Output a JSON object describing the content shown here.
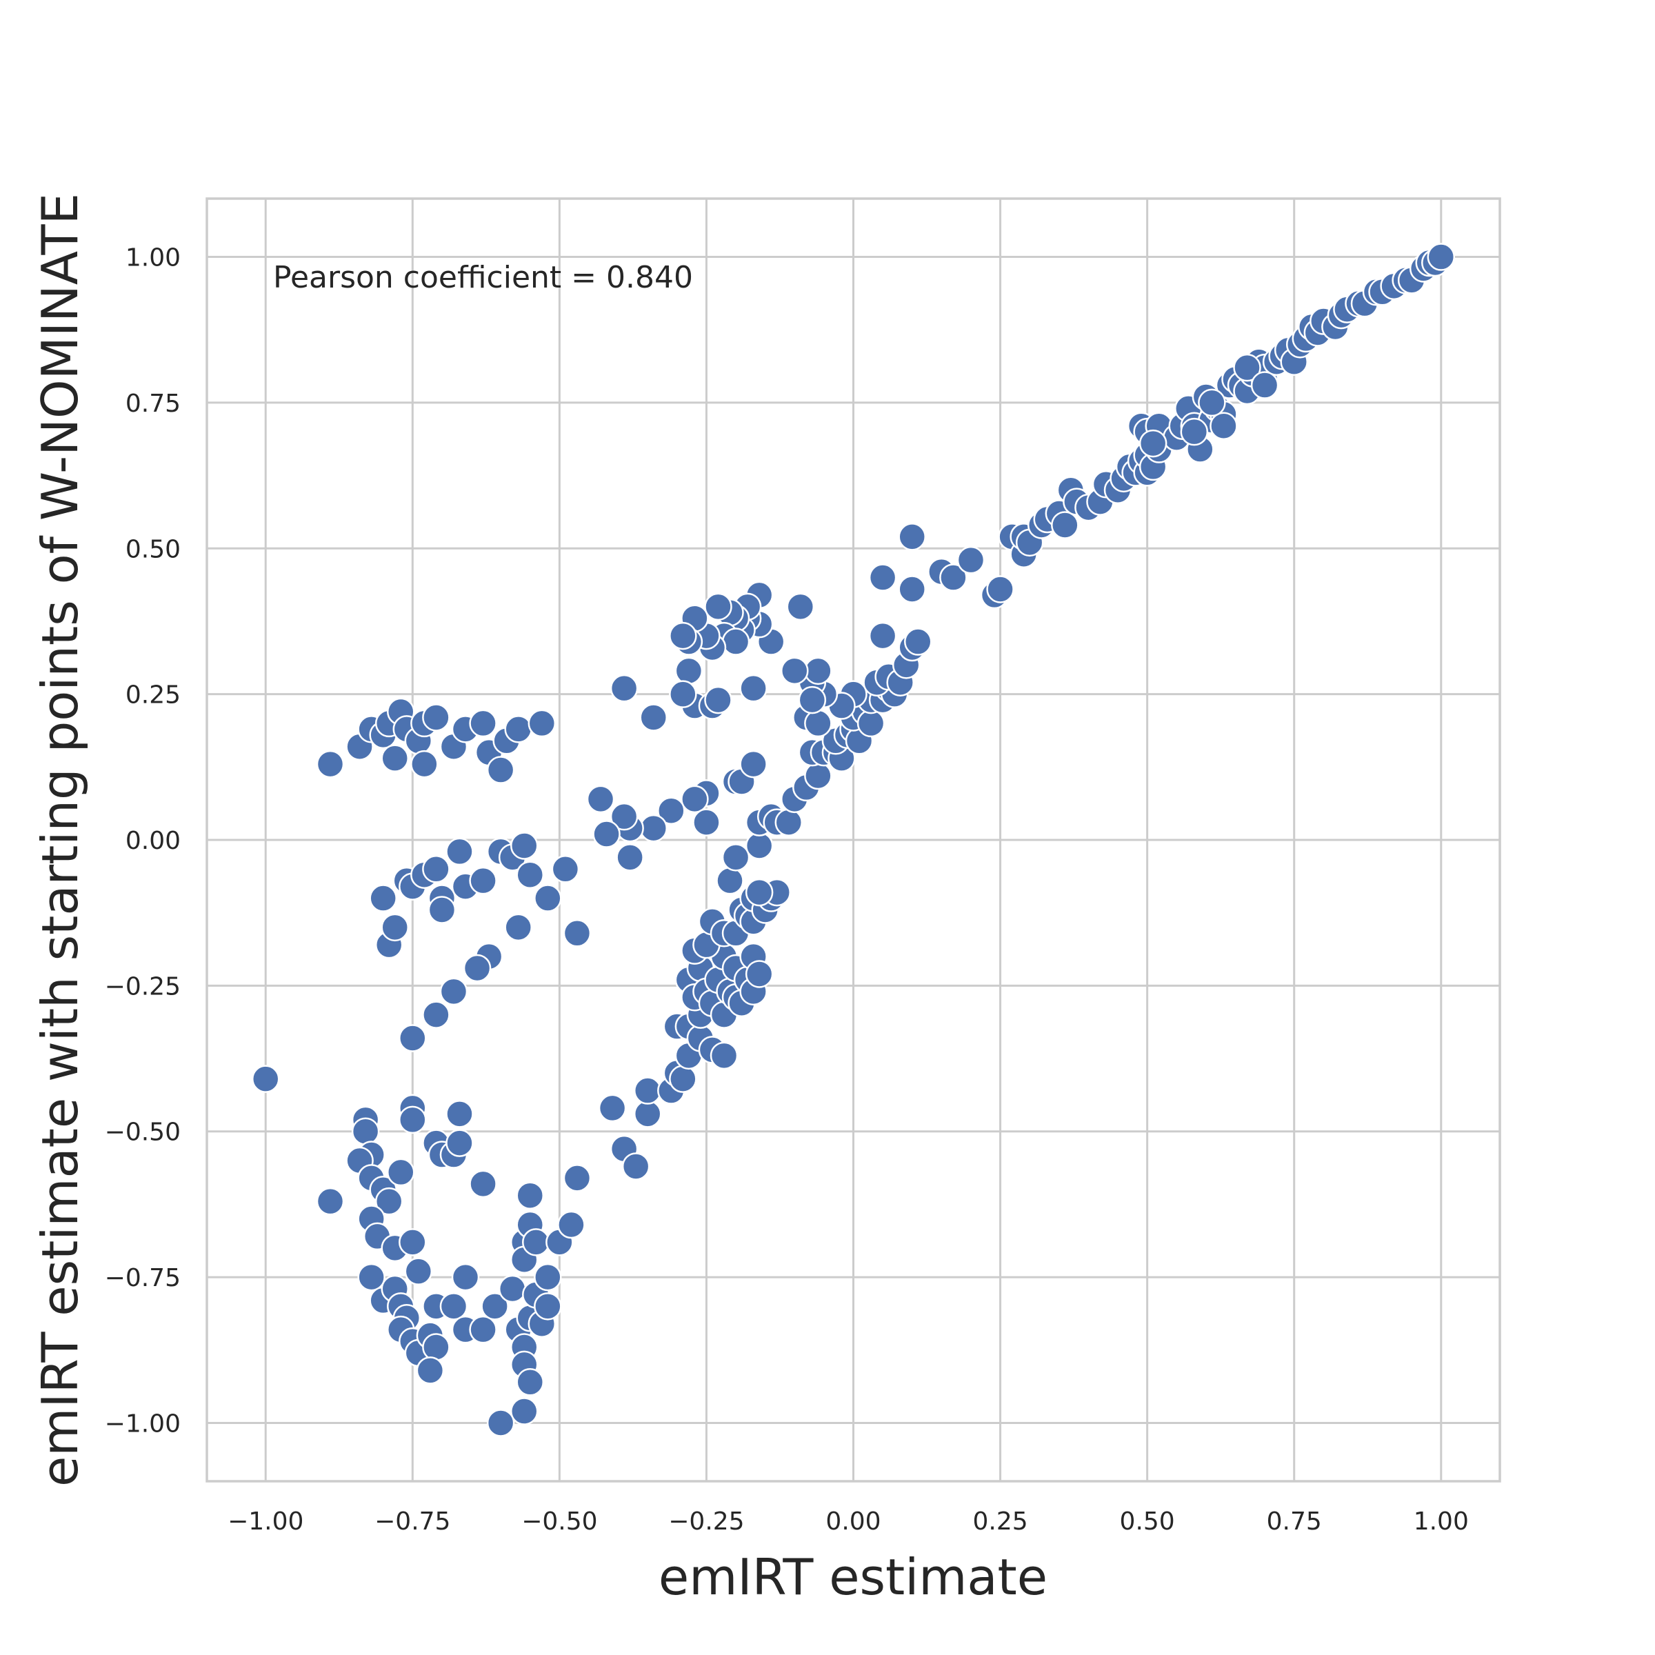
{
  "chart_data": {
    "type": "scatter",
    "xlabel": "emIRT estimate",
    "ylabel": "emIRT estimate with starting points of W-NOMINATE",
    "xlim": [
      -1.1,
      1.1
    ],
    "ylim": [
      -1.1,
      1.1
    ],
    "x_ticks": [
      -1.0,
      -0.75,
      -0.5,
      -0.25,
      0.0,
      0.25,
      0.5,
      0.75,
      1.0
    ],
    "y_ticks": [
      -1.0,
      -0.75,
      -0.5,
      -0.25,
      0.0,
      0.25,
      0.5,
      0.75,
      1.0
    ],
    "x_tick_labels": [
      "−1.00",
      "−0.75",
      "−0.50",
      "−0.25",
      "0.00",
      "0.25",
      "0.50",
      "0.75",
      "1.00"
    ],
    "y_tick_labels": [
      "−1.00",
      "−0.75",
      "−0.50",
      "−0.25",
      "0.00",
      "0.25",
      "0.50",
      "0.75",
      "1.00"
    ],
    "grid": true,
    "marker_color": "#4c72b0",
    "annotation": "Pearson coefficient = 0.840",
    "points": [
      [
        -1.0,
        -0.41
      ],
      [
        -0.89,
        0.13
      ],
      [
        -0.84,
        0.16
      ],
      [
        -0.82,
        0.19
      ],
      [
        -0.8,
        0.18
      ],
      [
        -0.79,
        0.2
      ],
      [
        -0.78,
        0.14
      ],
      [
        -0.77,
        0.22
      ],
      [
        -0.76,
        0.19
      ],
      [
        -0.74,
        0.17
      ],
      [
        -0.73,
        0.2
      ],
      [
        -0.73,
        0.13
      ],
      [
        -0.71,
        0.21
      ],
      [
        -0.68,
        0.16
      ],
      [
        -0.66,
        0.19
      ],
      [
        -0.63,
        0.2
      ],
      [
        -0.62,
        0.15
      ],
      [
        -0.6,
        0.12
      ],
      [
        -0.59,
        0.17
      ],
      [
        -0.57,
        0.19
      ],
      [
        -0.53,
        0.2
      ],
      [
        -0.8,
        -0.1
      ],
      [
        -0.79,
        -0.18
      ],
      [
        -0.78,
        -0.15
      ],
      [
        -0.76,
        -0.07
      ],
      [
        -0.75,
        -0.08
      ],
      [
        -0.73,
        -0.06
      ],
      [
        -0.71,
        -0.05
      ],
      [
        -0.7,
        -0.1
      ],
      [
        -0.7,
        -0.12
      ],
      [
        -0.67,
        -0.02
      ],
      [
        -0.66,
        -0.08
      ],
      [
        -0.63,
        -0.07
      ],
      [
        -0.6,
        -0.02
      ],
      [
        -0.58,
        -0.03
      ],
      [
        -0.56,
        -0.01
      ],
      [
        -0.55,
        -0.06
      ],
      [
        -0.52,
        -0.1
      ],
      [
        -0.49,
        -0.05
      ],
      [
        -0.47,
        -0.16
      ],
      [
        -0.57,
        -0.15
      ],
      [
        -0.62,
        -0.2
      ],
      [
        -0.64,
        -0.22
      ],
      [
        -0.68,
        -0.26
      ],
      [
        -0.71,
        -0.3
      ],
      [
        -0.75,
        -0.34
      ],
      [
        -0.83,
        -0.48
      ],
      [
        -0.83,
        -0.5
      ],
      [
        -0.82,
        -0.54
      ],
      [
        -0.84,
        -0.55
      ],
      [
        -0.82,
        -0.58
      ],
      [
        -0.89,
        -0.62
      ],
      [
        -0.8,
        -0.6
      ],
      [
        -0.79,
        -0.62
      ],
      [
        -0.82,
        -0.65
      ],
      [
        -0.81,
        -0.68
      ],
      [
        -0.77,
        -0.57
      ],
      [
        -0.75,
        -0.46
      ],
      [
        -0.75,
        -0.48
      ],
      [
        -0.71,
        -0.52
      ],
      [
        -0.7,
        -0.54
      ],
      [
        -0.68,
        -0.54
      ],
      [
        -0.67,
        -0.52
      ],
      [
        -0.67,
        -0.47
      ],
      [
        -0.78,
        -0.7
      ],
      [
        -0.75,
        -0.69
      ],
      [
        -0.74,
        -0.74
      ],
      [
        -0.82,
        -0.75
      ],
      [
        -0.8,
        -0.79
      ],
      [
        -0.78,
        -0.77
      ],
      [
        -0.77,
        -0.8
      ],
      [
        -0.76,
        -0.82
      ],
      [
        -0.77,
        -0.84
      ],
      [
        -0.75,
        -0.86
      ],
      [
        -0.74,
        -0.88
      ],
      [
        -0.72,
        -0.85
      ],
      [
        -0.71,
        -0.87
      ],
      [
        -0.72,
        -0.91
      ],
      [
        -0.71,
        -0.8
      ],
      [
        -0.68,
        -0.8
      ],
      [
        -0.66,
        -0.75
      ],
      [
        -0.66,
        -0.84
      ],
      [
        -0.63,
        -0.84
      ],
      [
        -0.63,
        -0.59
      ],
      [
        -0.61,
        -0.8
      ],
      [
        -0.58,
        -0.77
      ],
      [
        -0.57,
        -0.84
      ],
      [
        -0.56,
        -0.87
      ],
      [
        -0.56,
        -0.9
      ],
      [
        -0.55,
        -0.93
      ],
      [
        -0.56,
        -0.98
      ],
      [
        -0.6,
        -1.0
      ],
      [
        -0.55,
        -0.82
      ],
      [
        -0.54,
        -0.78
      ],
      [
        -0.53,
        -0.83
      ],
      [
        -0.52,
        -0.8
      ],
      [
        -0.52,
        -0.75
      ],
      [
        -0.56,
        -0.69
      ],
      [
        -0.55,
        -0.66
      ],
      [
        -0.55,
        -0.61
      ],
      [
        -0.56,
        -0.72
      ],
      [
        -0.54,
        -0.69
      ],
      [
        -0.5,
        -0.69
      ],
      [
        -0.48,
        -0.66
      ],
      [
        -0.47,
        -0.58
      ],
      [
        -0.41,
        -0.46
      ],
      [
        -0.39,
        -0.53
      ],
      [
        -0.37,
        -0.56
      ],
      [
        -0.35,
        -0.47
      ],
      [
        -0.35,
        -0.43
      ],
      [
        -0.31,
        -0.43
      ],
      [
        -0.3,
        -0.4
      ],
      [
        -0.29,
        -0.41
      ],
      [
        -0.28,
        -0.37
      ],
      [
        -0.3,
        -0.32
      ],
      [
        -0.28,
        -0.32
      ],
      [
        -0.26,
        -0.34
      ],
      [
        -0.26,
        -0.3
      ],
      [
        -0.24,
        -0.36
      ],
      [
        -0.22,
        -0.37
      ],
      [
        -0.28,
        -0.24
      ],
      [
        -0.27,
        -0.27
      ],
      [
        -0.26,
        -0.22
      ],
      [
        -0.25,
        -0.26
      ],
      [
        -0.24,
        -0.28
      ],
      [
        -0.23,
        -0.24
      ],
      [
        -0.22,
        -0.3
      ],
      [
        -0.22,
        -0.2
      ],
      [
        -0.21,
        -0.26
      ],
      [
        -0.2,
        -0.27
      ],
      [
        -0.2,
        -0.22
      ],
      [
        -0.19,
        -0.28
      ],
      [
        -0.18,
        -0.24
      ],
      [
        -0.17,
        -0.26
      ],
      [
        -0.17,
        -0.2
      ],
      [
        -0.16,
        -0.23
      ],
      [
        -0.27,
        -0.19
      ],
      [
        -0.25,
        -0.18
      ],
      [
        -0.24,
        -0.14
      ],
      [
        -0.22,
        -0.16
      ],
      [
        -0.2,
        -0.16
      ],
      [
        -0.19,
        -0.12
      ],
      [
        -0.18,
        -0.13
      ],
      [
        -0.17,
        -0.14
      ],
      [
        -0.17,
        -0.1
      ],
      [
        -0.15,
        -0.12
      ],
      [
        -0.14,
        -0.1
      ],
      [
        -0.13,
        -0.09
      ],
      [
        -0.16,
        -0.09
      ],
      [
        -0.21,
        -0.07
      ],
      [
        -0.2,
        -0.03
      ],
      [
        -0.16,
        -0.01
      ],
      [
        -0.16,
        0.03
      ],
      [
        -0.14,
        0.04
      ],
      [
        -0.13,
        0.03
      ],
      [
        -0.11,
        0.03
      ],
      [
        -0.1,
        0.07
      ],
      [
        -0.08,
        0.09
      ],
      [
        -0.06,
        0.11
      ],
      [
        -0.07,
        0.15
      ],
      [
        -0.05,
        0.15
      ],
      [
        -0.03,
        0.15
      ],
      [
        -0.02,
        0.14
      ],
      [
        -0.03,
        0.17
      ],
      [
        -0.01,
        0.18
      ],
      [
        0.0,
        0.19
      ],
      [
        0.01,
        0.17
      ],
      [
        0.0,
        0.21
      ],
      [
        0.02,
        0.22
      ],
      [
        0.03,
        0.2
      ],
      [
        0.03,
        0.24
      ],
      [
        0.05,
        0.24
      ],
      [
        0.06,
        0.26
      ],
      [
        0.07,
        0.25
      ],
      [
        0.04,
        0.27
      ],
      [
        0.06,
        0.28
      ],
      [
        0.08,
        0.27
      ],
      [
        0.09,
        0.3
      ],
      [
        0.1,
        0.33
      ],
      [
        0.11,
        0.34
      ],
      [
        0.05,
        0.35
      ],
      [
        0.0,
        0.25
      ],
      [
        -0.02,
        0.23
      ],
      [
        -0.05,
        0.25
      ],
      [
        -0.07,
        0.27
      ],
      [
        -0.06,
        0.29
      ],
      [
        -0.1,
        0.29
      ],
      [
        -0.08,
        0.21
      ],
      [
        -0.06,
        0.2
      ],
      [
        -0.07,
        0.24
      ],
      [
        -0.09,
        0.4
      ],
      [
        -0.14,
        0.34
      ],
      [
        -0.16,
        0.37
      ],
      [
        -0.16,
        0.42
      ],
      [
        -0.18,
        0.38
      ],
      [
        -0.18,
        0.4
      ],
      [
        -0.19,
        0.36
      ],
      [
        -0.2,
        0.38
      ],
      [
        -0.21,
        0.39
      ],
      [
        -0.22,
        0.35
      ],
      [
        -0.2,
        0.34
      ],
      [
        -0.23,
        0.4
      ],
      [
        -0.24,
        0.33
      ],
      [
        -0.25,
        0.35
      ],
      [
        -0.27,
        0.38
      ],
      [
        -0.28,
        0.34
      ],
      [
        -0.29,
        0.35
      ],
      [
        -0.28,
        0.29
      ],
      [
        -0.27,
        0.23
      ],
      [
        -0.24,
        0.23
      ],
      [
        -0.23,
        0.24
      ],
      [
        -0.29,
        0.25
      ],
      [
        -0.17,
        0.26
      ],
      [
        -0.34,
        0.21
      ],
      [
        -0.39,
        0.26
      ],
      [
        -0.2,
        0.1
      ],
      [
        -0.19,
        0.1
      ],
      [
        -0.17,
        0.13
      ],
      [
        -0.25,
        0.08
      ],
      [
        -0.27,
        0.07
      ],
      [
        -0.25,
        0.03
      ],
      [
        -0.31,
        0.05
      ],
      [
        -0.34,
        0.02
      ],
      [
        -0.38,
        0.02
      ],
      [
        -0.39,
        0.04
      ],
      [
        -0.42,
        0.01
      ],
      [
        -0.38,
        -0.03
      ],
      [
        -0.43,
        0.07
      ],
      [
        0.15,
        0.46
      ],
      [
        0.17,
        0.45
      ],
      [
        0.2,
        0.48
      ],
      [
        0.1,
        0.52
      ],
      [
        0.05,
        0.45
      ],
      [
        0.1,
        0.43
      ],
      [
        0.24,
        0.42
      ],
      [
        0.25,
        0.43
      ],
      [
        0.27,
        0.52
      ],
      [
        0.29,
        0.49
      ],
      [
        0.29,
        0.52
      ],
      [
        0.3,
        0.51
      ],
      [
        0.32,
        0.54
      ],
      [
        0.33,
        0.55
      ],
      [
        0.35,
        0.56
      ],
      [
        0.36,
        0.54
      ],
      [
        0.37,
        0.6
      ],
      [
        0.38,
        0.58
      ],
      [
        0.4,
        0.57
      ],
      [
        0.42,
        0.58
      ],
      [
        0.43,
        0.61
      ],
      [
        0.45,
        0.6
      ],
      [
        0.46,
        0.62
      ],
      [
        0.47,
        0.64
      ],
      [
        0.48,
        0.63
      ],
      [
        0.49,
        0.65
      ],
      [
        0.5,
        0.63
      ],
      [
        0.5,
        0.66
      ],
      [
        0.51,
        0.64
      ],
      [
        0.52,
        0.67
      ],
      [
        0.49,
        0.71
      ],
      [
        0.5,
        0.7
      ],
      [
        0.52,
        0.71
      ],
      [
        0.55,
        0.69
      ],
      [
        0.56,
        0.71
      ],
      [
        0.57,
        0.74
      ],
      [
        0.58,
        0.71
      ],
      [
        0.59,
        0.67
      ],
      [
        0.6,
        0.76
      ],
      [
        0.61,
        0.72
      ],
      [
        0.62,
        0.74
      ],
      [
        0.63,
        0.73
      ],
      [
        0.63,
        0.71
      ],
      [
        0.64,
        0.78
      ],
      [
        0.65,
        0.79
      ],
      [
        0.66,
        0.78
      ],
      [
        0.67,
        0.77
      ],
      [
        0.68,
        0.8
      ],
      [
        0.69,
        0.82
      ],
      [
        0.7,
        0.79
      ],
      [
        0.7,
        0.81
      ],
      [
        0.72,
        0.82
      ],
      [
        0.73,
        0.83
      ],
      [
        0.74,
        0.84
      ],
      [
        0.75,
        0.82
      ],
      [
        0.76,
        0.85
      ],
      [
        0.77,
        0.86
      ],
      [
        0.78,
        0.88
      ],
      [
        0.79,
        0.87
      ],
      [
        0.8,
        0.89
      ],
      [
        0.82,
        0.88
      ],
      [
        0.83,
        0.9
      ],
      [
        0.84,
        0.91
      ],
      [
        0.86,
        0.92
      ],
      [
        0.87,
        0.92
      ],
      [
        0.89,
        0.94
      ],
      [
        0.9,
        0.94
      ],
      [
        0.92,
        0.95
      ],
      [
        0.94,
        0.96
      ],
      [
        0.95,
        0.96
      ],
      [
        0.97,
        0.98
      ],
      [
        0.98,
        0.99
      ],
      [
        0.99,
        0.99
      ],
      [
        1.0,
        1.0
      ],
      [
        0.58,
        0.7
      ],
      [
        0.61,
        0.75
      ],
      [
        0.67,
        0.81
      ],
      [
        0.7,
        0.78
      ],
      [
        0.51,
        0.68
      ]
    ]
  }
}
